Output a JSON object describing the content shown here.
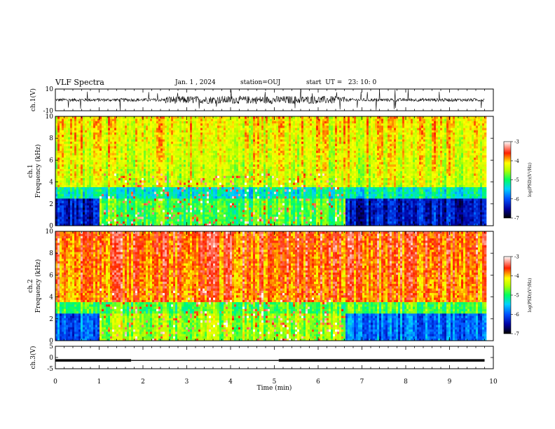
{
  "header": {
    "title": "VLF Spectra",
    "date": "Jan. 1 , 2024",
    "station": "station=OUJ",
    "start": "start  UT =   23: 10: 0"
  },
  "chart_data": [
    {
      "type": "line",
      "panel": "ch1-waveform",
      "xlabel": "",
      "ylabel": "ch.1(V)",
      "xlim": [
        0,
        10
      ],
      "ylim": [
        -10,
        10
      ],
      "yticks": [
        "10",
        "-10"
      ],
      "data_extent_min": 9.8,
      "description_values": {
        "envelope_quiet": 2.5,
        "envelope_active": 6.0,
        "active_range_min": [
          2.5,
          6.6
        ]
      }
    },
    {
      "type": "heatmap",
      "panel": "ch1-spectrogram",
      "ylabel_lines": [
        "ch.1",
        "Frequency (kHz)"
      ],
      "xlim": [
        0,
        10
      ],
      "ylim": [
        0,
        10
      ],
      "yticks": [
        "0",
        "2",
        "4",
        "6",
        "8",
        "10"
      ],
      "colorbar": {
        "label": "log(PSD)(V²/Hz)",
        "range": [
          -7,
          -3
        ],
        "ticks": [
          "-3",
          "-4",
          "-5",
          "-6",
          "-7"
        ]
      }
    },
    {
      "type": "heatmap",
      "panel": "ch2-spectrogram",
      "ylabel_lines": [
        "ch.2",
        "Frequency (kHz)"
      ],
      "xlim": [
        0,
        10
      ],
      "ylim": [
        0,
        10
      ],
      "yticks": [
        "0",
        "2",
        "4",
        "6",
        "8",
        "10"
      ],
      "colorbar": {
        "label": "log(PSD)(V²/Hz)",
        "range": [
          -7,
          -3
        ],
        "ticks": [
          "-3",
          "-4",
          "-5",
          "-6",
          "-7"
        ]
      }
    },
    {
      "type": "line",
      "panel": "ch3-signal",
      "ylabel": "ch.3(V)",
      "xlabel": "Time  (min)",
      "xlim": [
        0,
        10
      ],
      "ylim": [
        -5,
        5
      ],
      "yticks": [
        "5",
        "0",
        "-5"
      ],
      "xticks": [
        "0",
        "1",
        "2",
        "3",
        "4",
        "5",
        "6",
        "7",
        "8",
        "9",
        "10"
      ],
      "segments": [
        {
          "x": [
            0,
            1.73
          ],
          "y": -1.3,
          "weight": "thick"
        },
        {
          "x": [
            1.73,
            5.1
          ],
          "y": -1.3,
          "weight": "thin"
        },
        {
          "x": [
            5.1,
            9.8
          ],
          "y": -1.3,
          "weight": "thick"
        }
      ]
    }
  ]
}
